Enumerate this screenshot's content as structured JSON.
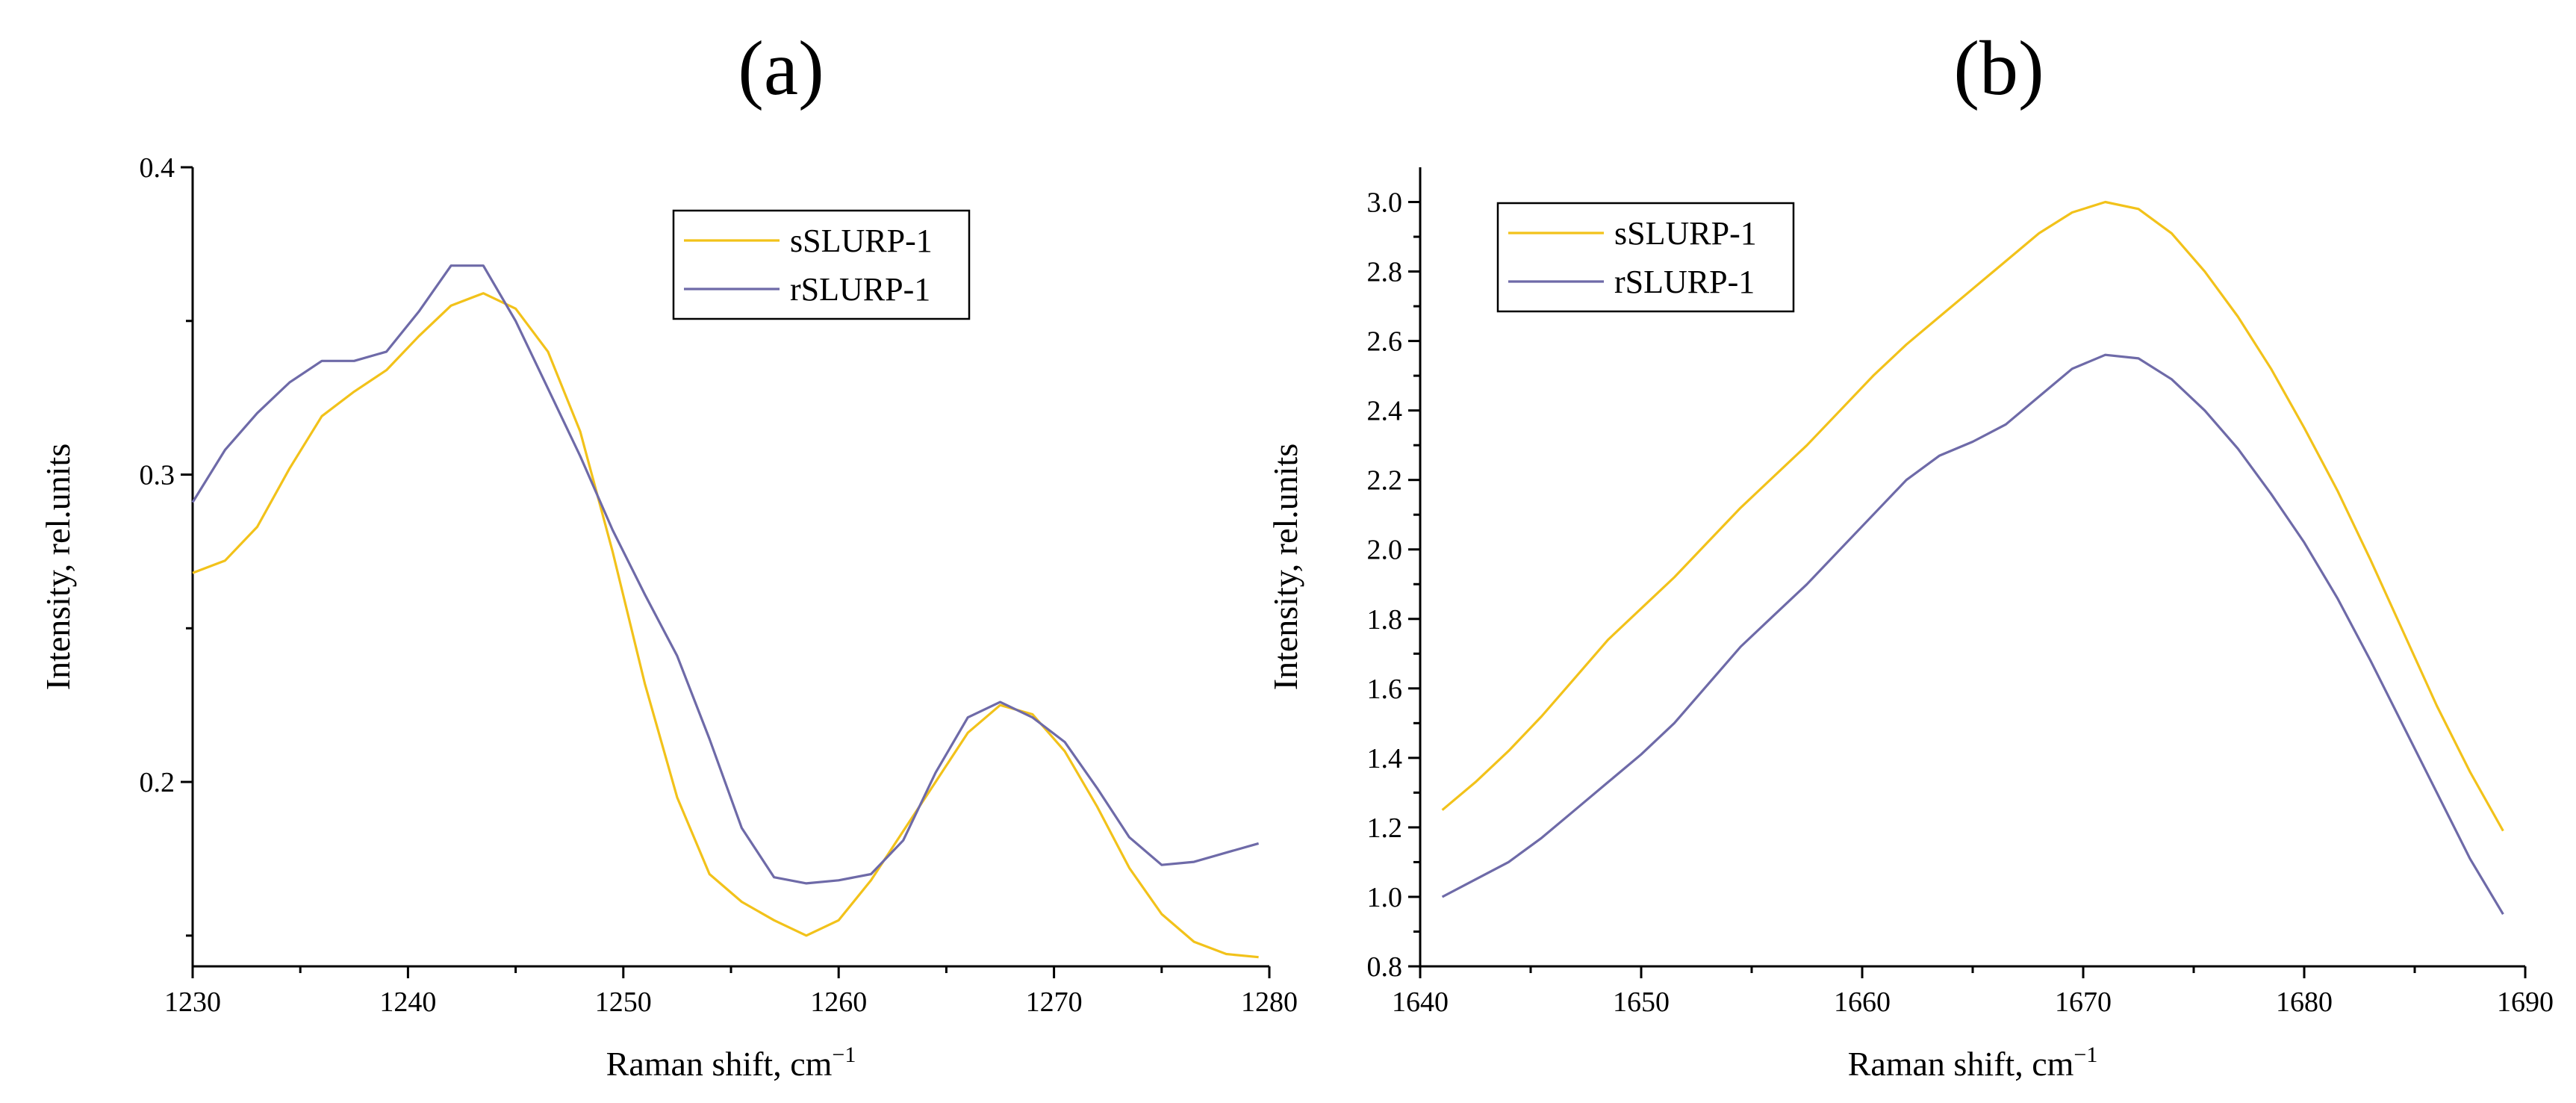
{
  "chart_data": [
    {
      "type": "line",
      "panel_label": "(a)",
      "title": "",
      "xlabel": "Raman shift, cm",
      "xlabel_sup": "−1",
      "ylabel": "Intensity, rel.units",
      "xlim": [
        1230,
        1280
      ],
      "ylim": [
        0.14,
        0.4
      ],
      "xticks": [
        1230,
        1240,
        1250,
        1260,
        1270,
        1280
      ],
      "xtick_labels": [
        "1230",
        "1240",
        "1250",
        "1260",
        "1270",
        "1280"
      ],
      "yticks": [
        0.2,
        0.3,
        0.4
      ],
      "ytick_labels": [
        "0.2",
        "0.3",
        "0.4"
      ],
      "minor_xticks": [
        1235,
        1245,
        1255,
        1265,
        1275
      ],
      "minor_yticks": [
        0.15,
        0.25,
        0.35
      ],
      "legend": {
        "position": "top-right",
        "entries": [
          "sSLURP-1",
          "rSLURP-1"
        ]
      },
      "series": [
        {
          "name": "sSLURP-1",
          "color": "#f2c21a",
          "x": [
            1230,
            1231.5,
            1233,
            1234.5,
            1236,
            1237.5,
            1239,
            1240.5,
            1242,
            1243.5,
            1245,
            1246.5,
            1248,
            1249.5,
            1251,
            1252.5,
            1254,
            1255.5,
            1257,
            1258.5,
            1260,
            1261.5,
            1263,
            1264.5,
            1266,
            1267.5,
            1269,
            1270.5,
            1272,
            1273.5,
            1275,
            1276.5,
            1278,
            1279.5
          ],
          "values": [
            0.268,
            0.272,
            0.283,
            0.302,
            0.319,
            0.327,
            0.334,
            0.345,
            0.355,
            0.359,
            0.354,
            0.34,
            0.314,
            0.275,
            0.232,
            0.195,
            0.17,
            0.161,
            0.155,
            0.15,
            0.155,
            0.168,
            0.184,
            0.2,
            0.216,
            0.225,
            0.222,
            0.21,
            0.192,
            0.172,
            0.157,
            0.148,
            0.144,
            0.143
          ]
        },
        {
          "name": "rSLURP-1",
          "color": "#6e6aa8",
          "x": [
            1230,
            1231.5,
            1233,
            1234.5,
            1236,
            1237.5,
            1239,
            1240.5,
            1242,
            1243.5,
            1245,
            1246.5,
            1248,
            1249.5,
            1251,
            1252.5,
            1254,
            1255.5,
            1257,
            1258.5,
            1260,
            1261.5,
            1263,
            1264.5,
            1266,
            1267.5,
            1269,
            1270.5,
            1272,
            1273.5,
            1275,
            1276.5,
            1278,
            1279.5
          ],
          "values": [
            0.291,
            0.308,
            0.32,
            0.33,
            0.337,
            0.337,
            0.34,
            0.353,
            0.368,
            0.368,
            0.35,
            0.328,
            0.306,
            0.282,
            0.261,
            0.241,
            0.214,
            0.185,
            0.169,
            0.167,
            0.168,
            0.17,
            0.181,
            0.203,
            0.221,
            0.226,
            0.221,
            0.213,
            0.198,
            0.182,
            0.173,
            0.174,
            0.177,
            0.18
          ]
        }
      ]
    },
    {
      "type": "line",
      "panel_label": "(b)",
      "title": "",
      "xlabel": "Raman shift, cm",
      "xlabel_sup": "−1",
      "ylabel": "Intensity, rel.units",
      "xlim": [
        1640,
        1690
      ],
      "ylim": [
        0.8,
        3.1
      ],
      "xticks": [
        1640,
        1650,
        1660,
        1670,
        1680,
        1690
      ],
      "xtick_labels": [
        "1640",
        "1650",
        "1660",
        "1670",
        "1680",
        "1690"
      ],
      "yticks": [
        0.8,
        1.0,
        1.2,
        1.4,
        1.6,
        1.8,
        2.0,
        2.2,
        2.4,
        2.6,
        2.8,
        3.0
      ],
      "ytick_labels": [
        "0.8",
        "1.0",
        "1.2",
        "1.4",
        "1.6",
        "1.8",
        "2.0",
        "2.2",
        "2.4",
        "2.6",
        "2.8",
        "3.0"
      ],
      "minor_xticks": [
        1645,
        1655,
        1665,
        1675,
        1685
      ],
      "minor_yticks": [
        0.9,
        1.1,
        1.3,
        1.5,
        1.7,
        1.9,
        2.1,
        2.3,
        2.5,
        2.7,
        2.9
      ],
      "legend": {
        "position": "top-left",
        "entries": [
          "sSLURP-1",
          "rSLURP-1"
        ]
      },
      "series": [
        {
          "name": "sSLURP-1",
          "color": "#f2c21a",
          "x": [
            1641,
            1642.5,
            1644,
            1645.5,
            1647,
            1648.5,
            1650,
            1651.5,
            1653,
            1654.5,
            1656,
            1657.5,
            1659,
            1660.5,
            1662,
            1663.5,
            1665,
            1666.5,
            1668,
            1669.5,
            1671,
            1672.5,
            1674,
            1675.5,
            1677,
            1678.5,
            1680,
            1681.5,
            1683,
            1684.5,
            1686,
            1687.5,
            1689
          ],
          "values": [
            1.25,
            1.33,
            1.42,
            1.52,
            1.63,
            1.74,
            1.83,
            1.92,
            2.02,
            2.12,
            2.21,
            2.3,
            2.4,
            2.5,
            2.59,
            2.67,
            2.75,
            2.83,
            2.91,
            2.97,
            3.0,
            2.98,
            2.91,
            2.8,
            2.67,
            2.52,
            2.35,
            2.17,
            1.97,
            1.76,
            1.55,
            1.36,
            1.19
          ]
        },
        {
          "name": "rSLURP-1",
          "color": "#6e6aa8",
          "x": [
            1641,
            1642.5,
            1644,
            1645.5,
            1647,
            1648.5,
            1650,
            1651.5,
            1653,
            1654.5,
            1656,
            1657.5,
            1659,
            1660.5,
            1662,
            1663.5,
            1665,
            1666.5,
            1668,
            1669.5,
            1671,
            1672.5,
            1674,
            1675.5,
            1677,
            1678.5,
            1680,
            1681.5,
            1683,
            1684.5,
            1686,
            1687.5,
            1689
          ],
          "values": [
            1.0,
            1.05,
            1.1,
            1.17,
            1.25,
            1.33,
            1.41,
            1.5,
            1.61,
            1.72,
            1.81,
            1.9,
            2.0,
            2.1,
            2.2,
            2.27,
            2.31,
            2.36,
            2.44,
            2.52,
            2.56,
            2.55,
            2.49,
            2.4,
            2.29,
            2.16,
            2.02,
            1.86,
            1.68,
            1.49,
            1.3,
            1.11,
            0.95
          ]
        }
      ]
    }
  ]
}
